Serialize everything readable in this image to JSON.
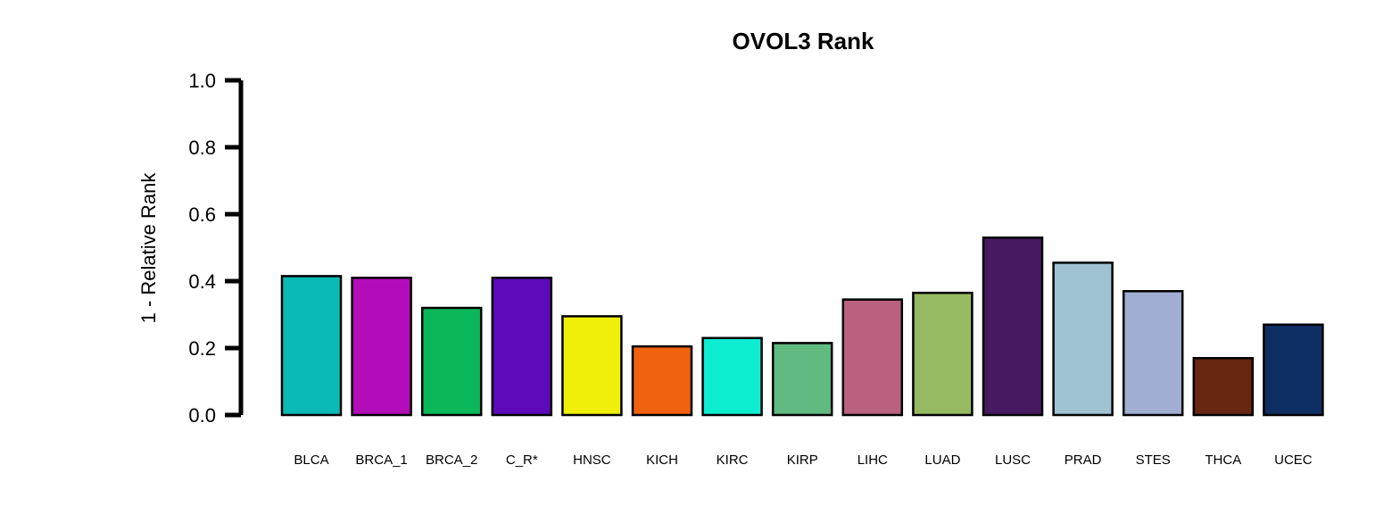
{
  "chart_data": {
    "type": "bar",
    "title": "OVOL3 Rank",
    "xlabel": "",
    "ylabel": "1 - Relative Rank",
    "ylim": [
      0,
      1
    ],
    "yticks": [
      "0.0",
      "0.2",
      "0.4",
      "0.6",
      "0.8",
      "1.0"
    ],
    "grid": false,
    "legend": "none",
    "categories": [
      "BLCA",
      "BRCA_1",
      "BRCA_2",
      "C_R*",
      "HNSC",
      "KICH",
      "KIRC",
      "KIRP",
      "LIHC",
      "LUAD",
      "LUSC",
      "PRAD",
      "STES",
      "THCA",
      "UCEC"
    ],
    "values": [
      0.415,
      0.41,
      0.32,
      0.41,
      0.295,
      0.205,
      0.23,
      0.215,
      0.345,
      0.365,
      0.53,
      0.455,
      0.37,
      0.17,
      0.27
    ],
    "colors": [
      "#0ABAB5",
      "#B30DBA",
      "#0AB85A",
      "#5E0ABA",
      "#EFEF0A",
      "#F06110",
      "#0DEDD2",
      "#61BA80",
      "#BA617F",
      "#96BA61",
      "#461961",
      "#A0C3D2",
      "#A0AED2",
      "#692611",
      "#0F2F64"
    ]
  }
}
